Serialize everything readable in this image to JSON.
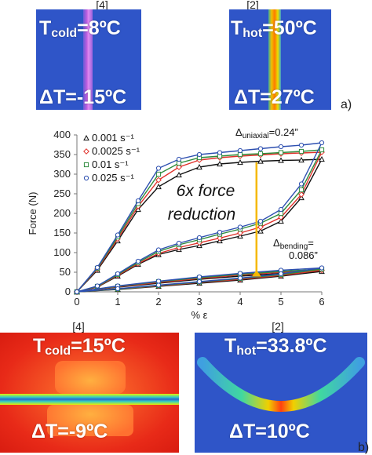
{
  "panel_a": {
    "letter": "a)",
    "cold": {
      "ref": "[4]",
      "label_main": "T",
      "label_sub": "cold",
      "label_value": "=8ºC",
      "delta": "ΔT=-15ºC"
    },
    "hot": {
      "ref": "[2]",
      "label_main": "T",
      "label_sub": "hot",
      "label_value": "=50ºC",
      "delta": "ΔT=27ºC"
    }
  },
  "panel_b": {
    "letter": "b)",
    "cold": {
      "ref": "[4]",
      "label_main": "T",
      "label_sub": "cold",
      "label_value": "=15ºC",
      "delta": "ΔT=-9ºC"
    },
    "hot": {
      "ref": "[2]",
      "label_main": "T",
      "label_sub": "hot",
      "label_value": "=33.8ºC",
      "delta": "ΔT=10ºC"
    }
  },
  "colors": {
    "cold_background": "#2f55c8",
    "cold_stripe": "#c060e0",
    "hot_background": "#2f55c8",
    "hot_stripe": "#ff8a00",
    "arrow": "#f5b800",
    "series": [
      "#111111",
      "#e0302a",
      "#2e8b3c",
      "#2d4fb0"
    ]
  },
  "chart_data": {
    "type": "line",
    "xlabel": "% ε",
    "ylabel": "Force (N)",
    "xlim": [
      0,
      6
    ],
    "ylim": [
      0,
      400
    ],
    "xticks": [
      0,
      1,
      2,
      3,
      4,
      5,
      6
    ],
    "yticks": [
      0,
      50,
      100,
      150,
      200,
      250,
      300,
      350,
      400
    ],
    "grid": false,
    "legend_position": "top-left",
    "series": [
      {
        "name": "0.001 s⁻¹",
        "marker": "triangle",
        "color": "#111111",
        "loops": [
          {
            "x": [
              0,
              0.5,
              1.0,
              1.5,
              2.0,
              2.5,
              3.0,
              3.5,
              4.0,
              4.5,
              5.0,
              5.5,
              6.0,
              5.5,
              5.0,
              4.5,
              4.0,
              3.5,
              3.0,
              2.5,
              2.0,
              1.5,
              1.0,
              0.5,
              0
            ],
            "y": [
              0,
              55,
              130,
              210,
              268,
              298,
              318,
              326,
              330,
              333,
              335,
              336,
              338,
              240,
              180,
              155,
              142,
              130,
              118,
              108,
              95,
              70,
              40,
              12,
              0
            ]
          },
          {
            "x": [
              0,
              1,
              2,
              3,
              4,
              5,
              6,
              5,
              4,
              3,
              2,
              1,
              0
            ],
            "y": [
              0,
              12,
              22,
              32,
              40,
              47,
              52,
              40,
              30,
              22,
              14,
              6,
              0
            ]
          }
        ]
      },
      {
        "name": "0.0025 s⁻¹",
        "marker": "diamond",
        "color": "#e0302a",
        "loops": [
          {
            "x": [
              0,
              0.5,
              1.0,
              1.5,
              2.0,
              2.5,
              3.0,
              3.5,
              4.0,
              4.5,
              5.0,
              5.5,
              6.0,
              5.5,
              5.0,
              4.5,
              4.0,
              3.5,
              3.0,
              2.5,
              2.0,
              1.5,
              1.0,
              0.5,
              0
            ],
            "y": [
              0,
              58,
              135,
              218,
              285,
              318,
              336,
              342,
              346,
              349,
              352,
              354,
              356,
              248,
              190,
              165,
              150,
              137,
              125,
              113,
              98,
              72,
              42,
              13,
              0
            ]
          },
          {
            "x": [
              0,
              1,
              2,
              3,
              4,
              5,
              6,
              5,
              4,
              3,
              2,
              1,
              0
            ],
            "y": [
              0,
              13,
              24,
              34,
              43,
              50,
              55,
              42,
              32,
              24,
              15,
              7,
              0
            ]
          }
        ]
      },
      {
        "name": "0.01 s⁻¹",
        "marker": "square",
        "color": "#2e8b3c",
        "loops": [
          {
            "x": [
              0,
              0.5,
              1.0,
              1.5,
              2.0,
              2.5,
              3.0,
              3.5,
              4.0,
              4.5,
              5.0,
              5.5,
              6.0,
              5.5,
              5.0,
              4.5,
              4.0,
              3.5,
              3.0,
              2.5,
              2.0,
              1.5,
              1.0,
              0.5,
              0
            ],
            "y": [
              0,
              60,
              140,
              225,
              300,
              328,
              342,
              346,
              350,
              352,
              355,
              358,
              362,
              260,
              200,
              175,
              160,
              147,
              133,
              120,
              103,
              75,
              44,
              14,
              0
            ]
          },
          {
            "x": [
              0,
              1,
              2,
              3,
              4,
              5,
              6,
              5,
              4,
              3,
              2,
              1,
              0
            ],
            "y": [
              0,
              14,
              26,
              36,
              45,
              52,
              58,
              44,
              34,
              25,
              16,
              7,
              0
            ]
          }
        ]
      },
      {
        "name": "0.025 s⁻¹",
        "marker": "circle",
        "color": "#2d4fb0",
        "loops": [
          {
            "x": [
              0,
              0.5,
              1.0,
              1.5,
              2.0,
              2.5,
              3.0,
              3.5,
              4.0,
              4.5,
              5.0,
              5.5,
              6.0,
              5.5,
              5.0,
              4.5,
              4.0,
              3.5,
              3.0,
              2.5,
              2.0,
              1.5,
              1.0,
              0.5,
              0
            ],
            "y": [
              0,
              62,
              145,
              232,
              315,
              338,
              350,
              355,
              360,
              365,
              370,
              374,
              380,
              275,
              210,
              180,
              165,
              152,
              138,
              124,
              107,
              78,
              46,
              15,
              0
            ]
          },
          {
            "x": [
              0,
              1,
              2,
              3,
              4,
              5,
              6,
              5,
              4,
              3,
              2,
              1,
              0
            ],
            "y": [
              0,
              15,
              27,
              38,
              47,
              55,
              61,
              46,
              35,
              26,
              17,
              8,
              0
            ]
          }
        ]
      }
    ],
    "annotations": {
      "reduction_line1": "6x force",
      "reduction_line2": "reduction",
      "uniaxial_main": "Δ",
      "uniaxial_sub": "uniaxial",
      "uniaxial_value": "=0.24”",
      "bending_main": "Δ",
      "bending_sub": "bending",
      "bending_value": "=",
      "bending_value2": "0.086”",
      "arrow_x": 4.4,
      "arrow_from": 330,
      "arrow_to": 55
    }
  }
}
